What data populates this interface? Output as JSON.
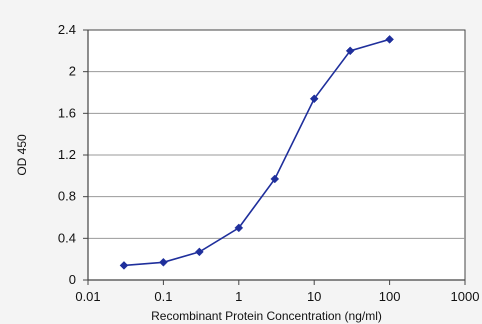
{
  "chart_data": {
    "type": "line",
    "title": "",
    "xlabel": "Recombinant Protein Concentration (ng/ml)",
    "ylabel": "OD 450",
    "xscale": "log",
    "xlim": [
      0.01,
      1000
    ],
    "ylim": [
      0,
      2.4
    ],
    "xticks": [
      0.01,
      0.1,
      1,
      10,
      100,
      1000
    ],
    "xtick_labels": [
      "0.01",
      "0.1",
      "1",
      "10",
      "100",
      "1000"
    ],
    "yticks": [
      0,
      0.4,
      0.8,
      1.2,
      1.6,
      2,
      2.4
    ],
    "ytick_labels": [
      "0",
      "0.4",
      "0.8",
      "1.2",
      "1.6",
      "2",
      "2.4"
    ],
    "grid": {
      "horizontal": true,
      "vertical": false
    },
    "legend": "none",
    "series": [
      {
        "x": [
          0.03,
          0.1,
          0.3,
          1,
          3,
          10,
          30,
          100
        ],
        "y": [
          0.14,
          0.17,
          0.27,
          0.5,
          0.97,
          1.74,
          2.2,
          2.31
        ],
        "color": "#1f2f9c",
        "marker": "diamond"
      }
    ],
    "colors": {
      "plot_background": "#ffffff",
      "page_background": "#f4f4f4",
      "gridline": "#9a9a9a",
      "axis": "#444444"
    }
  }
}
